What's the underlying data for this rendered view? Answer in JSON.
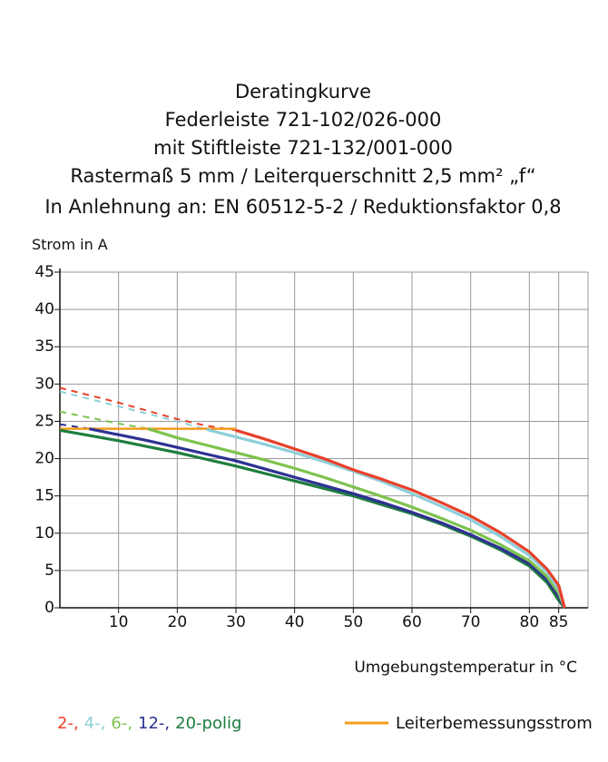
{
  "chart_data": {
    "type": "line",
    "title": [
      "Deratingkurve",
      "Federleiste 721-102/026-000",
      "mit Stiftleiste 721-132/001-000",
      "Rastermaß 5 mm / Leiterquerschnitt 2,5 mm² „f“",
      "In Anlehnung an: EN 60512-5-2 / Reduktionsfaktor 0,8"
    ],
    "ylabel": "Strom in A",
    "xlabel": "Umgebungstemperatur in °C",
    "x": [
      0,
      5,
      10,
      15,
      20,
      25,
      30,
      35,
      40,
      45,
      50,
      55,
      60,
      65,
      70,
      75,
      80,
      83,
      85,
      86
    ],
    "xlim": [
      0,
      90
    ],
    "xticks": [
      10,
      20,
      30,
      40,
      50,
      60,
      70,
      80,
      85
    ],
    "ylim": [
      0,
      45
    ],
    "yticks": [
      0,
      5,
      10,
      15,
      20,
      25,
      30,
      35,
      40,
      45
    ],
    "grid": true,
    "series": [
      {
        "name": "2-,",
        "color": "#e8402a",
        "values": [
          null,
          null,
          null,
          null,
          null,
          null,
          23.8,
          22.6,
          21.3,
          20,
          18.5,
          17.2,
          15.8,
          14.1,
          12.3,
          10.1,
          7.5,
          5.2,
          3,
          0
        ],
        "extrapolated_values": [
          29.5,
          28.5,
          27.5,
          26.4,
          25.3,
          24.4,
          23.8,
          null,
          null,
          null,
          null,
          null,
          null,
          null,
          null,
          null,
          null,
          null,
          null,
          null
        ]
      },
      {
        "name": "4-,",
        "color": "#8ecfd9",
        "values": [
          null,
          null,
          null,
          null,
          null,
          23.9,
          22.9,
          21.9,
          20.8,
          19.6,
          18.3,
          16.9,
          15.3,
          13.6,
          11.8,
          9.6,
          7,
          4.8,
          2.5,
          0
        ],
        "extrapolated_values": [
          29,
          28,
          27,
          26,
          25,
          23.9,
          null,
          null,
          null,
          null,
          null,
          null,
          null,
          null,
          null,
          null,
          null,
          null,
          null,
          null
        ]
      },
      {
        "name": "6-,",
        "color": "#7dc24e",
        "values": [
          null,
          null,
          null,
          24,
          22.8,
          21.8,
          20.8,
          19.8,
          18.7,
          17.5,
          16.2,
          14.9,
          13.5,
          12,
          10.4,
          8.5,
          6.3,
          4.2,
          2,
          0
        ],
        "extrapolated_values": [
          26.3,
          25.5,
          24.7,
          24,
          null,
          null,
          null,
          null,
          null,
          null,
          null,
          null,
          null,
          null,
          null,
          null,
          null,
          null,
          null,
          null
        ]
      },
      {
        "name": "12-,",
        "color": "#2e3192",
        "values": [
          null,
          24,
          23.2,
          22.4,
          21.5,
          20.6,
          19.7,
          18.6,
          17.5,
          16.4,
          15.3,
          14.1,
          12.8,
          11.4,
          9.8,
          8,
          5.9,
          3.8,
          1.5,
          0
        ],
        "extrapolated_values": [
          24.6,
          24,
          null,
          null,
          null,
          null,
          null,
          null,
          null,
          null,
          null,
          null,
          null,
          null,
          null,
          null,
          null,
          null,
          null,
          null
        ]
      },
      {
        "name": "20-polig",
        "color": "#1e7d3e",
        "values": [
          23.8,
          23.1,
          22.4,
          21.6,
          20.8,
          19.9,
          19,
          18,
          17,
          16,
          15,
          13.8,
          12.6,
          11.2,
          9.6,
          7.8,
          5.6,
          3.4,
          1,
          0
        ]
      }
    ],
    "rated_current": {
      "name": "Leiterbemessungsstrom",
      "color": "#f39c1f",
      "values": [
        24,
        24,
        24,
        24,
        24,
        24,
        24,
        null,
        null,
        null,
        null,
        null,
        null,
        null,
        null,
        null,
        null,
        null,
        null,
        null
      ]
    }
  }
}
